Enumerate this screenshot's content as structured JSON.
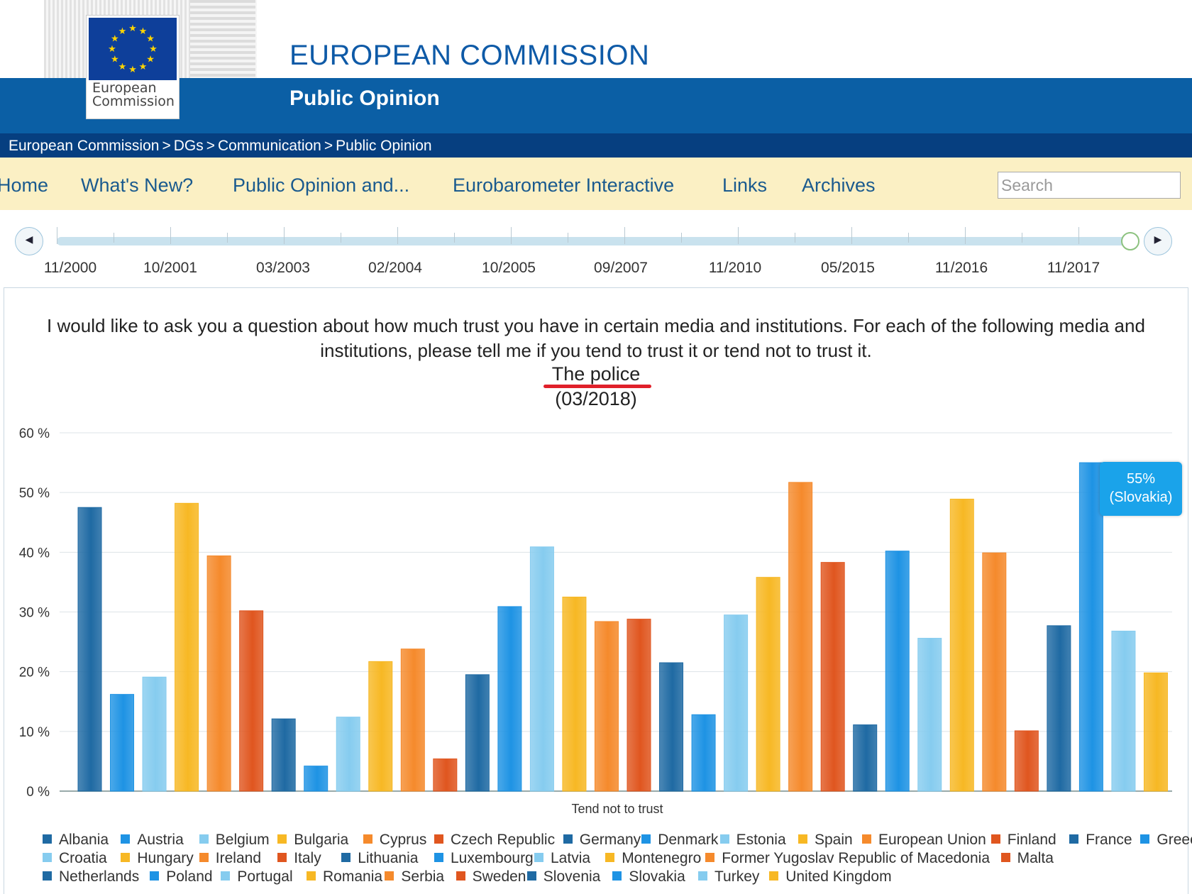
{
  "header": {
    "logo_text_line1": "European",
    "logo_text_line2": "Commission",
    "site_title": "EUROPEAN COMMISSION",
    "section_title": "Public Opinion",
    "breadcrumb": [
      "European Commission",
      "DGs",
      "Communication",
      "Public Opinion"
    ],
    "breadcrumb_sep": ">"
  },
  "nav": {
    "items": [
      "Home",
      "What's New?",
      "Public Opinion and...",
      "Eurobarometer Interactive",
      "Links",
      "Archives"
    ],
    "search_placeholder": "Search"
  },
  "timeline": {
    "prev_icon": "◀",
    "next_icon": "▶",
    "labels": [
      "11/2000",
      "10/2001",
      "03/2003",
      "02/2004",
      "10/2005",
      "09/2007",
      "11/2010",
      "05/2015",
      "11/2016",
      "11/2017"
    ]
  },
  "question": {
    "text": "I would like to ask you a question about how much trust you have in certain media and institutions. For each of the following media and institutions, please tell me if you tend to trust it or tend not to trust it.",
    "item": "The police",
    "date": "(03/2018)"
  },
  "tooltip": {
    "value": "55%",
    "country": "(Slovakia)"
  },
  "colors": {
    "dark_blue": "#1f6aa3",
    "blue": "#1e93e4",
    "light_blue": "#86ccef",
    "yellow": "#f7b824",
    "orange": "#f58a2c",
    "red": "#e0561f"
  },
  "chart_data": {
    "type": "bar",
    "xlabel": "Tend not to trust",
    "ylabel": "",
    "ylim": [
      0,
      60
    ],
    "yticks": [
      "0 %",
      "10 %",
      "20 %",
      "30 %",
      "40 %",
      "50 %",
      "60 %"
    ],
    "grid": true,
    "legend_position": "bottom",
    "categories": [
      "Albania",
      "Austria",
      "Belgium",
      "Bulgaria",
      "Cyprus",
      "Czech Republic",
      "Germany",
      "Denmark",
      "Estonia",
      "Spain",
      "European Union",
      "Finland",
      "France",
      "Greece",
      "Croatia",
      "Hungary",
      "Ireland",
      "Italy",
      "Lithuania",
      "Luxembourg",
      "Latvia",
      "Montenegro",
      "Former Yugoslav Republic of Macedonia",
      "Malta",
      "Netherlands",
      "Poland",
      "Portugal",
      "Romania",
      "Serbia",
      "Sweden",
      "Slovenia",
      "Slovakia",
      "Turkey",
      "United Kingdom"
    ],
    "values": [
      47.5,
      16.2,
      19.1,
      48.2,
      39.4,
      30.2,
      12.1,
      4.2,
      12.4,
      21.7,
      23.8,
      5.4,
      19.5,
      30.9,
      40.9,
      32.5,
      28.4,
      28.8,
      21.5,
      12.8,
      29.5,
      35.8,
      51.7,
      38.3,
      11.1,
      40.2,
      25.6,
      48.9,
      39.9,
      10.1,
      27.7,
      55.0,
      26.8,
      19.8
    ],
    "series_colors": [
      "#1f6aa3",
      "#1e93e4",
      "#86ccef",
      "#f7b824",
      "#f58a2c",
      "#e0561f"
    ]
  }
}
